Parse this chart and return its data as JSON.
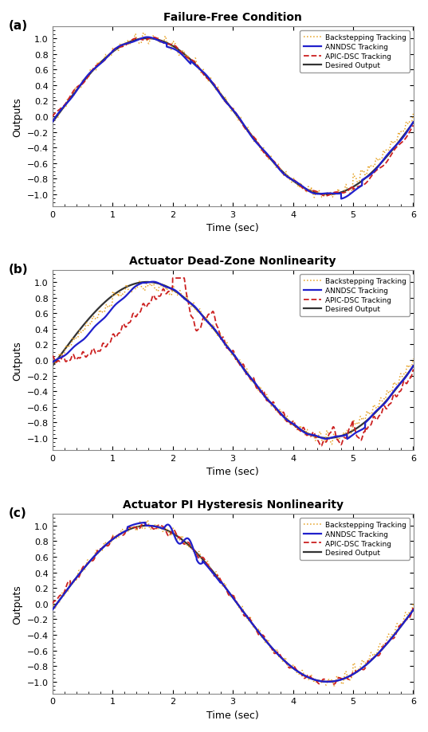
{
  "titles": [
    "Failure-Free Condition",
    "Actuator Dead-Zone Nonlinearity",
    "Actuator PI Hysteresis Nonlinearity"
  ],
  "panel_labels": [
    "(a)",
    "(b)",
    "(c)"
  ],
  "xlabel": "Time (sec)",
  "ylabel": "Outputs",
  "xlim": [
    0,
    6
  ],
  "ylim": [
    -1.15,
    1.15
  ],
  "xticks": [
    0,
    1,
    2,
    3,
    4,
    5,
    6
  ],
  "yticks": [
    -1,
    -0.8,
    -0.6,
    -0.4,
    -0.2,
    0,
    0.2,
    0.4,
    0.6,
    0.8,
    1
  ],
  "legend_labels": [
    "Backstepping Tracking",
    "ANNDSC Tracking",
    "APIC-DSC Tracking",
    "Desired Output"
  ],
  "colors": {
    "backstepping": "#E6A020",
    "anndsc": "#2020CC",
    "apic": "#CC2020",
    "desired": "#333333"
  },
  "linewidths": {
    "backstepping": 1.1,
    "anndsc": 1.6,
    "apic": 1.3,
    "desired": 1.6
  },
  "figsize": [
    5.37,
    9.2
  ],
  "dpi": 100
}
